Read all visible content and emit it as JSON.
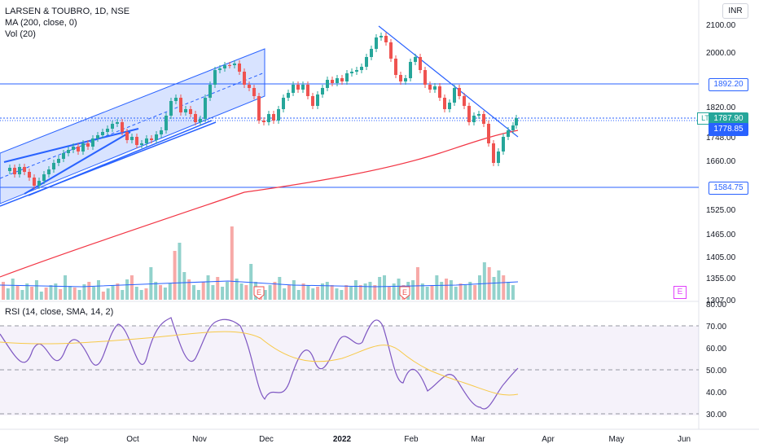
{
  "header": {
    "title": "LARSEN & TOUBRO, 1D, NSE",
    "ma_label": "MA (200, close, 0)",
    "vol_label": "Vol (20)",
    "currency": "INR"
  },
  "symbol_badge": "LT",
  "price_tags": {
    "resistance": "1892.20",
    "last_price": "1787.90",
    "ma_value": "1778.85",
    "support": "1584.75"
  },
  "price_axis": [
    "2100.00",
    "2000.00",
    "1820.00",
    "1748.00",
    "1660.00",
    "1525.00",
    "1465.00",
    "1405.00",
    "1355.00",
    "1307.00"
  ],
  "time_axis": [
    "Sep",
    "Oct",
    "Nov",
    "Dec",
    "2022",
    "Feb",
    "Mar",
    "Apr",
    "May",
    "Jun"
  ],
  "earnings_marker": "E",
  "rsi": {
    "label": "RSI (14, close, SMA, 14, 2)",
    "axis": [
      "80.00",
      "70.00",
      "60.00",
      "50.00",
      "40.00",
      "30.00"
    ]
  },
  "colors": {
    "up": "#26a69a",
    "down": "#ef5350",
    "ma": "#f23645",
    "line": "#2962ff",
    "rsi": "#7e57c2",
    "rsi_sma": "#f7c948"
  }
}
